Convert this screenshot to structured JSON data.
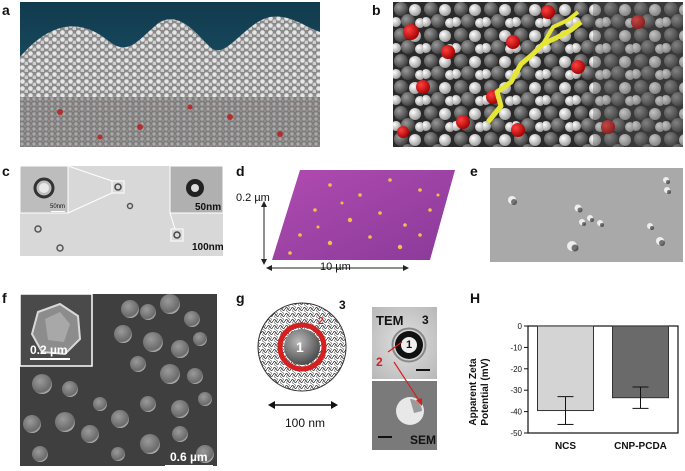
{
  "panels": {
    "a": {
      "label": "a"
    },
    "b": {
      "label": "b"
    },
    "c": {
      "label": "c",
      "scale_inset": "50nm",
      "scale_main": "100nm"
    },
    "d": {
      "label": "d",
      "height_label": "0.2 µm",
      "width_label": "10 µm"
    },
    "e": {
      "label": "e"
    },
    "f": {
      "label": "f",
      "scale_inset": "0.2 µm",
      "scale_main": "0.6 µm"
    },
    "g": {
      "label": "g",
      "region_1": "1",
      "region_2": "2",
      "region_3": "3",
      "size_label": "100 nm",
      "tem_label": "TEM",
      "sem_label": "SEM"
    },
    "h": {
      "label": "H"
    }
  },
  "chart_data": {
    "type": "bar",
    "categories": [
      "NCS",
      "CNP-PCDA"
    ],
    "values": [
      -39.5,
      -33.5
    ],
    "errors": [
      6.5,
      5
    ],
    "ylabel": "Apparent Zeta Potential (mV)",
    "ylim": [
      -50,
      0
    ],
    "yticks": [
      0,
      -10,
      -20,
      -30,
      -40,
      -50
    ],
    "colors": [
      "#d4d4d4",
      "#6a6a6a"
    ]
  }
}
